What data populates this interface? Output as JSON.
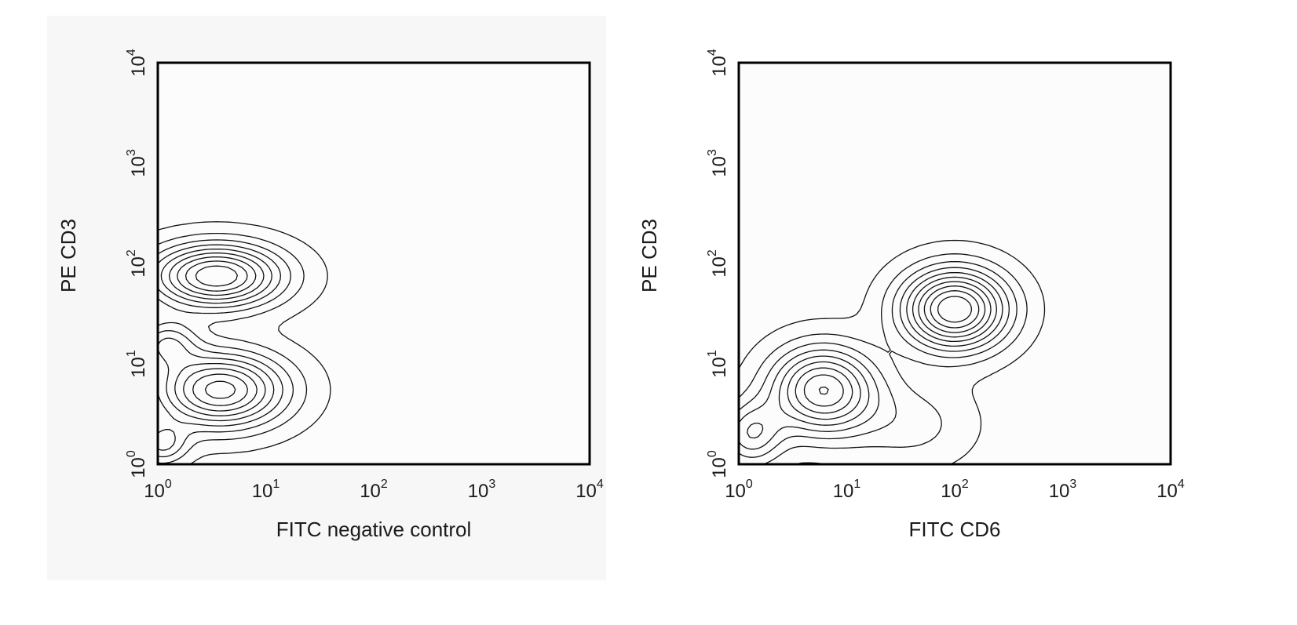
{
  "chart_data": [
    {
      "type": "contour",
      "xlabel": "FITC negative control",
      "ylabel": "PE CD3",
      "x_scale": "log",
      "y_scale": "log",
      "xlim": [
        1,
        10000
      ],
      "ylim": [
        1,
        10000
      ],
      "x_ticks": [
        {
          "base": "10",
          "exp": "0",
          "value": 1
        },
        {
          "base": "10",
          "exp": "1",
          "value": 10
        },
        {
          "base": "10",
          "exp": "2",
          "value": 100
        },
        {
          "base": "10",
          "exp": "3",
          "value": 1000
        },
        {
          "base": "10",
          "exp": "4",
          "value": 10000
        }
      ],
      "y_ticks": [
        {
          "base": "10",
          "exp": "0",
          "value": 1
        },
        {
          "base": "10",
          "exp": "1",
          "value": 10
        },
        {
          "base": "10",
          "exp": "2",
          "value": 100
        },
        {
          "base": "10",
          "exp": "3",
          "value": 1000
        },
        {
          "base": "10",
          "exp": "4",
          "value": 10000
        }
      ],
      "populations": [
        {
          "x": 3.5,
          "y": 75,
          "spread_decades": [
            0.42,
            0.22
          ],
          "weight": 1.0
        },
        {
          "x": 3.8,
          "y": 5.5,
          "spread_decades": [
            0.42,
            0.26
          ],
          "weight": 0.95
        },
        {
          "x": 1.2,
          "y": 16,
          "spread_decades": [
            0.2,
            0.16
          ],
          "weight": 0.42
        },
        {
          "x": 1.1,
          "y": 1.6,
          "spread_decades": [
            0.16,
            0.14
          ],
          "weight": 0.38
        }
      ],
      "contour_levels": 9,
      "grid": false,
      "legend": "none"
    },
    {
      "type": "contour",
      "xlabel": "FITC CD6",
      "ylabel": "PE CD3",
      "x_scale": "log",
      "y_scale": "log",
      "xlim": [
        1,
        10000
      ],
      "ylim": [
        1,
        10000
      ],
      "x_ticks": [
        {
          "base": "10",
          "exp": "0",
          "value": 1
        },
        {
          "base": "10",
          "exp": "1",
          "value": 10
        },
        {
          "base": "10",
          "exp": "2",
          "value": 100
        },
        {
          "base": "10",
          "exp": "3",
          "value": 1000
        },
        {
          "base": "10",
          "exp": "4",
          "value": 10000
        }
      ],
      "y_ticks": [
        {
          "base": "10",
          "exp": "0",
          "value": 1
        },
        {
          "base": "10",
          "exp": "1",
          "value": 10
        },
        {
          "base": "10",
          "exp": "2",
          "value": 100
        },
        {
          "base": "10",
          "exp": "3",
          "value": 1000
        },
        {
          "base": "10",
          "exp": "4",
          "value": 10000
        }
      ],
      "populations": [
        {
          "x": 100,
          "y": 35,
          "spread_decades": [
            0.34,
            0.28
          ],
          "weight": 1.0
        },
        {
          "x": 6,
          "y": 5.5,
          "spread_decades": [
            0.34,
            0.3
          ],
          "weight": 0.8
        },
        {
          "x": 1.3,
          "y": 2,
          "spread_decades": [
            0.2,
            0.22
          ],
          "weight": 0.4
        },
        {
          "x": 40,
          "y": 2.5,
          "spread_decades": [
            0.4,
            0.3
          ],
          "weight": 0.18
        }
      ],
      "contour_levels": 10,
      "grid": false,
      "legend": "none"
    }
  ],
  "colors": {
    "left_panel_bg": "#f7f7f7",
    "plot_bg": "#fcfcfc",
    "frame": "#000000",
    "contour": "#111111",
    "text": "#1a1a1a"
  }
}
